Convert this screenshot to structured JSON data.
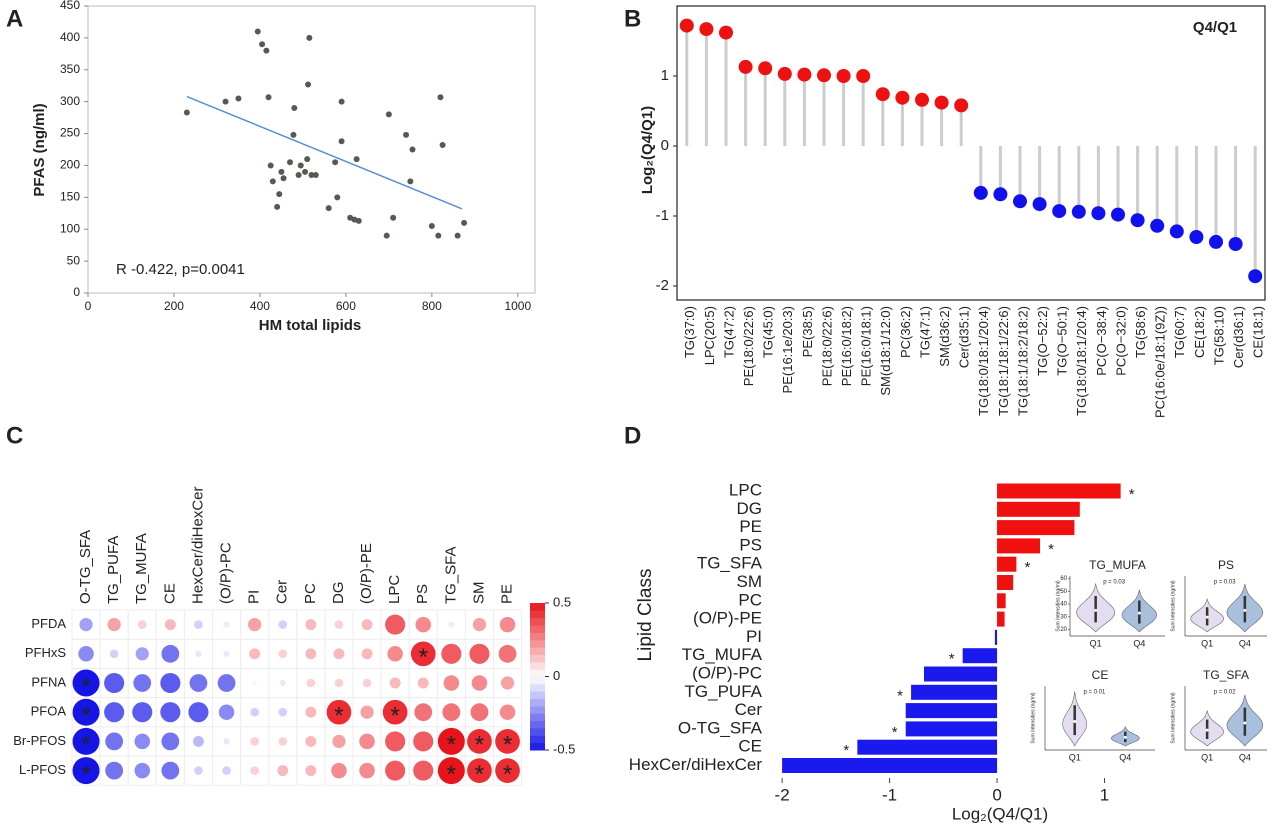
{
  "chart_data": [
    {
      "panel": "A",
      "type": "scatter",
      "xlabel": "HM total lipids",
      "ylabel": "PFAS (ng/ml)",
      "annotation": "R -0.422, p=0.0041",
      "x": [
        230,
        320,
        350,
        395,
        405,
        415,
        420,
        425,
        430,
        440,
        445,
        450,
        455,
        470,
        480,
        478,
        490,
        495,
        505,
        510,
        515,
        512,
        520,
        530,
        560,
        575,
        580,
        590,
        590,
        610,
        620,
        625,
        630,
        695,
        700,
        710,
        740,
        750,
        755,
        800,
        815,
        820,
        825,
        860,
        875
      ],
      "y": [
        283,
        300,
        305,
        410,
        390,
        380,
        307,
        200,
        175,
        135,
        155,
        190,
        180,
        205,
        290,
        248,
        185,
        200,
        190,
        210,
        400,
        327,
        185,
        185,
        133,
        205,
        150,
        238,
        300,
        118,
        115,
        210,
        113,
        90,
        280,
        118,
        248,
        175,
        225,
        105,
        90,
        307,
        232,
        90,
        110
      ],
      "xlim": [
        0,
        1040
      ],
      "ylim": [
        0,
        450
      ],
      "xticks": [
        0,
        200,
        400,
        600,
        800,
        1000
      ],
      "yticks": [
        0,
        50,
        100,
        150,
        200,
        250,
        300,
        350,
        400,
        450
      ],
      "color": "#555b50",
      "trendline": {
        "x": [
          230,
          870
        ],
        "y": [
          308,
          132
        ],
        "color": "#5b8fd0"
      }
    },
    {
      "panel": "B",
      "type": "lollipop",
      "title": "Q4/Q1",
      "ylabel": "Log₂(Q4/Q1)",
      "categories": [
        "TG(37:0)",
        "LPC(20:5)",
        "TG(47:2)",
        "PE(18:0/22:6)",
        "TG(45:0)",
        "PE(16:1e/20:3)",
        "PE(38:5)",
        "PE(18:0/22:6)",
        "PE(16:0/18:2)",
        "PE(16:0/18:1)",
        "SM(d18:1/12:0)",
        "PC(36:2)",
        "TG(47:1)",
        "SM(d36:2)",
        "Cer(d35:1)",
        "TG(18:0/18:1/20:4)",
        "TG(18:1/18:1/22:6)",
        "TG(18:1/18:2/18:2)",
        "TG(O−52:2)",
        "TG(O−50:1)",
        "TG(18:0/18:1/20:4)",
        "PC(O−38:4)",
        "PC(O−32:0)",
        "TG(58:6)",
        "PC(16:0e/18:1(9Z))",
        "TG(60:7)",
        "CE(18:2)",
        "TG(58:10)",
        "Cer(d36:1)",
        "CE(18:1)"
      ],
      "values": [
        1.72,
        1.67,
        1.62,
        1.13,
        1.11,
        1.03,
        1.02,
        1.01,
        1.0,
        1.0,
        0.74,
        0.69,
        0.66,
        0.62,
        0.58,
        -0.67,
        -0.69,
        -0.79,
        -0.83,
        -0.93,
        -0.94,
        -0.96,
        -0.98,
        -1.06,
        -1.14,
        -1.22,
        -1.3,
        -1.37,
        -1.4,
        -1.86
      ],
      "ylim": [
        -2.2,
        2.0
      ],
      "yticks": [
        -2,
        -1,
        0,
        1
      ],
      "color_positive": "#ee1111",
      "color_negative": "#1111ee",
      "stem_color": "#cccccc"
    },
    {
      "panel": "C",
      "type": "correlation",
      "columns": [
        "O-TG_SFA",
        "TG_PUFA",
        "TG_MUFA",
        "CE",
        "HexCer/diHexCer",
        "(O/P)-PC",
        "PI",
        "Cer",
        "PC",
        "DG",
        "(O/P)-PE",
        "LPC",
        "PS",
        "TG_SFA",
        "SM",
        "PE"
      ],
      "rows": [
        "PFDA",
        "PFHxS",
        "PFNA",
        "PFOA",
        "Br-PFOS",
        "L-PFOS"
      ],
      "values": [
        [
          -0.2,
          0.2,
          0.1,
          0.15,
          -0.1,
          0.05,
          0.2,
          -0.1,
          0.15,
          0.1,
          0.15,
          0.35,
          0.25,
          0.05,
          0.2,
          0.25
        ],
        [
          -0.25,
          -0.1,
          -0.2,
          -0.3,
          -0.05,
          -0.05,
          0.15,
          0.1,
          0.15,
          0.15,
          0.15,
          0.25,
          0.45,
          0.35,
          0.35,
          0.3
        ],
        [
          -0.5,
          -0.35,
          -0.3,
          -0.35,
          -0.3,
          -0.3,
          0.02,
          -0.05,
          0.1,
          0.1,
          0.1,
          0.15,
          0.15,
          0.25,
          0.25,
          0.2
        ],
        [
          -0.5,
          -0.35,
          -0.35,
          -0.35,
          -0.35,
          -0.25,
          -0.1,
          -0.1,
          0.15,
          0.45,
          0.2,
          0.45,
          0.3,
          0.3,
          0.3,
          0.25
        ],
        [
          -0.5,
          -0.3,
          -0.25,
          -0.3,
          -0.15,
          -0.05,
          0.1,
          0.1,
          0.15,
          0.2,
          0.25,
          0.35,
          0.35,
          0.5,
          0.45,
          0.45
        ],
        [
          -0.5,
          -0.3,
          -0.25,
          -0.3,
          -0.1,
          -0.1,
          0.1,
          0.15,
          0.15,
          0.25,
          0.25,
          0.35,
          0.35,
          0.5,
          0.45,
          0.45
        ]
      ],
      "stars": [
        [
          null,
          null,
          null,
          null,
          null,
          null,
          null,
          null,
          null,
          null,
          null,
          null,
          null,
          null,
          null,
          null
        ],
        [
          null,
          null,
          null,
          null,
          null,
          null,
          null,
          null,
          null,
          null,
          null,
          null,
          "*",
          null,
          null,
          null
        ],
        [
          "*",
          null,
          null,
          null,
          null,
          null,
          null,
          null,
          null,
          null,
          null,
          null,
          null,
          null,
          null,
          null
        ],
        [
          "*",
          null,
          null,
          null,
          null,
          null,
          null,
          null,
          null,
          "*",
          null,
          "*",
          null,
          null,
          null,
          null
        ],
        [
          "*",
          null,
          null,
          null,
          null,
          null,
          null,
          null,
          null,
          null,
          null,
          null,
          null,
          "*",
          "*",
          "*"
        ],
        [
          "*",
          null,
          null,
          null,
          null,
          null,
          null,
          null,
          null,
          null,
          null,
          null,
          null,
          "*",
          "*",
          "*"
        ]
      ],
      "clim": [
        -0.5,
        0.5
      ],
      "cticks": [
        0.5,
        0,
        -0.5
      ],
      "color_positive": "#e8141c",
      "color_negative": "#1515e6"
    },
    {
      "panel": "D",
      "type": "barh",
      "xlabel": "Log₂(Q4/Q1)",
      "ylabel": "Lipid Class",
      "categories": [
        "LPC",
        "DG",
        "PE",
        "PS",
        "TG_SFA",
        "SM",
        "PC",
        "(O/P)-PE",
        "PI",
        "TG_MUFA",
        "(O/P)-PC",
        "TG_PUFA",
        "Cer",
        "O-TG_SFA",
        "CE",
        "HexCer/diHexCer"
      ],
      "values": [
        1.15,
        0.77,
        0.72,
        0.4,
        0.18,
        0.15,
        0.08,
        0.07,
        -0.02,
        -0.32,
        -0.68,
        -0.8,
        -0.85,
        -0.85,
        -1.3,
        -2.0
      ],
      "stars": [
        "*",
        null,
        null,
        "*",
        "*",
        null,
        null,
        null,
        null,
        "*",
        null,
        "*",
        null,
        "*",
        "*",
        null
      ],
      "xlim": [
        -2.15,
        1.6
      ],
      "xticks": [
        -2,
        -1,
        0,
        1
      ],
      "color_positive": "#f01010",
      "color_negative": "#1a1aee",
      "insets": [
        {
          "title": "TG_MUFA",
          "p": "p = 0.03",
          "categories": [
            "Q1",
            "Q4"
          ],
          "ylabel": "Sum Intensities (ng/ml)",
          "ylim": [
            15,
            62
          ],
          "yticks": [
            20,
            30,
            40,
            50,
            60
          ]
        },
        {
          "title": "PS",
          "p": "p = 0.03",
          "categories": [
            "Q1",
            "Q4"
          ],
          "ylabel": "Sum Intensities (ng/ml)"
        },
        {
          "title": "CE",
          "p": "p = 0.01",
          "categories": [
            "Q1",
            "Q4"
          ],
          "ylabel": "Sum Intensities (ng/ml)"
        },
        {
          "title": "TG_SFA",
          "p": "p = 0.02",
          "categories": [
            "Q1",
            "Q4"
          ],
          "ylabel": "Sum Intensities (ng/ml)"
        }
      ]
    }
  ]
}
